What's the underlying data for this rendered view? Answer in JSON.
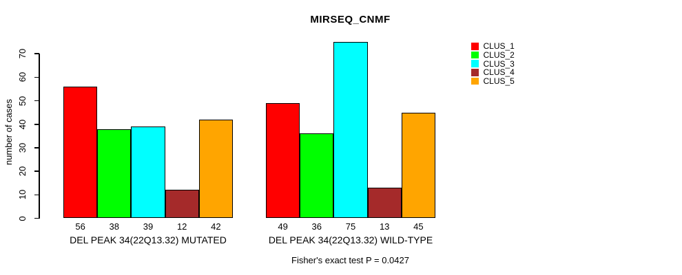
{
  "chart_data": {
    "type": "bar",
    "title": "MIRSEQ_CNMF",
    "ylabel": "number of cases",
    "xlabel": "",
    "yticks": [
      0,
      10,
      20,
      30,
      40,
      50,
      60,
      70
    ],
    "ylim": [
      0,
      75
    ],
    "grid": false,
    "legend_position": "right-outside",
    "categories": [
      "DEL PEAK 34(22Q13.32) MUTATED",
      "DEL PEAK 34(22Q13.32) WILD-TYPE"
    ],
    "series": [
      {
        "name": "CLUS_1",
        "color": "#FF0000",
        "values": [
          56,
          49
        ]
      },
      {
        "name": "CLUS_2",
        "color": "#00FF00",
        "values": [
          38,
          36
        ]
      },
      {
        "name": "CLUS_3",
        "color": "#00FFFF",
        "values": [
          39,
          75
        ]
      },
      {
        "name": "CLUS_4",
        "color": "#A52A2A",
        "values": [
          12,
          13
        ]
      },
      {
        "name": "CLUS_5",
        "color": "#FFA500",
        "values": [
          42,
          45
        ]
      }
    ],
    "bar_value_labels_shown": true,
    "annotation": "Fisher's exact test P = 0.0427"
  },
  "colors": {
    "background": "#FFFFFF",
    "axis": "#000000",
    "text": "#000000",
    "bar_border": "#000000"
  }
}
